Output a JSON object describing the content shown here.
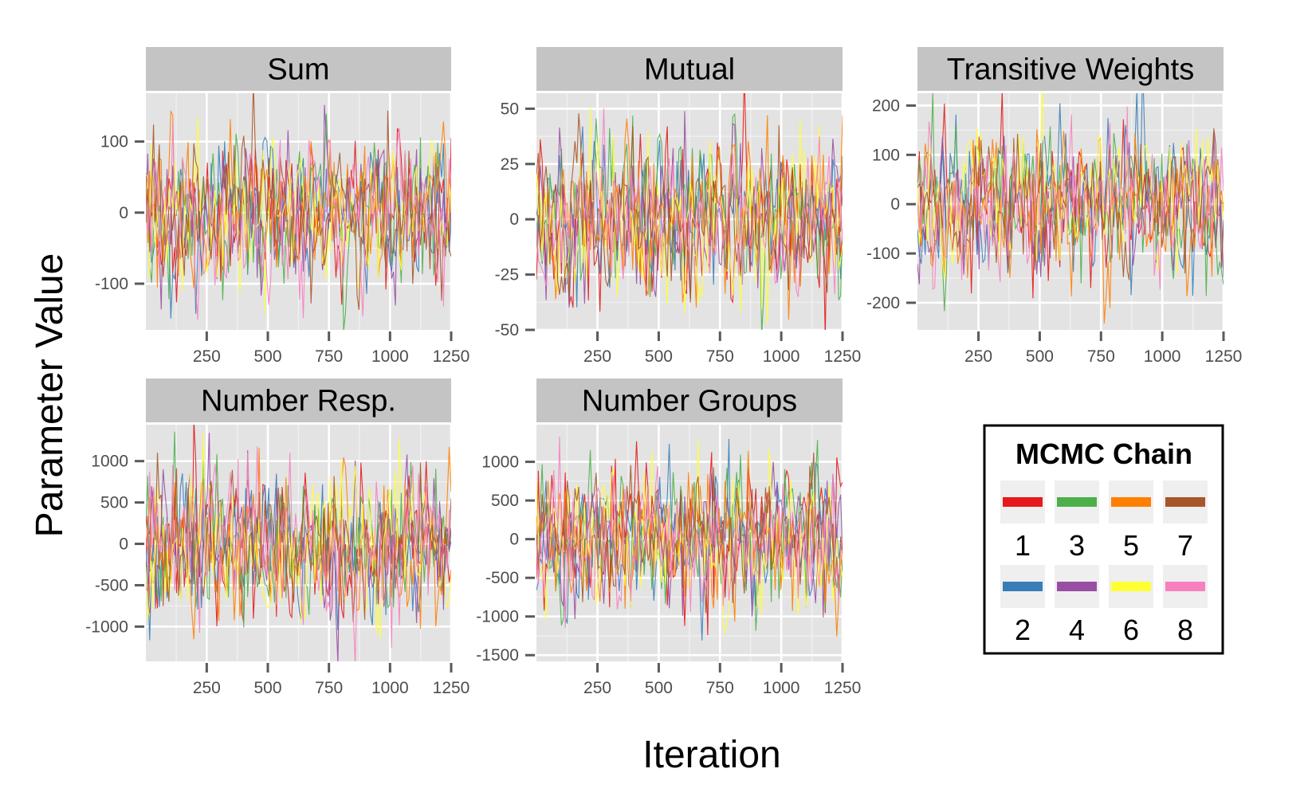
{
  "chart_data": {
    "type": "line",
    "xlabel": "Iteration",
    "ylabel": "Parameter Value",
    "x_range": [
      1,
      1250
    ],
    "x_ticks": [
      250,
      500,
      750,
      1000,
      1250
    ],
    "legend": {
      "title": "MCMC Chain",
      "position": "bottom-right",
      "entries": [
        {
          "label": "1",
          "color": "#E41A1C"
        },
        {
          "label": "2",
          "color": "#377EB8"
        },
        {
          "label": "3",
          "color": "#4DAF4A"
        },
        {
          "label": "4",
          "color": "#984EA3"
        },
        {
          "label": "5",
          "color": "#FF7F00"
        },
        {
          "label": "6",
          "color": "#FFFF33"
        },
        {
          "label": "7",
          "color": "#A65628"
        },
        {
          "label": "8",
          "color": "#F781BF"
        }
      ]
    },
    "panels": [
      {
        "title": "Sum",
        "ylim": [
          -165,
          168
        ],
        "y_ticks": [
          -100,
          0,
          100
        ],
        "y_tick_labels": [
          "-100",
          "0",
          "100"
        ],
        "series_mean": 0,
        "series_sd": 50
      },
      {
        "title": "Mutual",
        "ylim": [
          -50,
          57
        ],
        "y_ticks": [
          -50,
          -25,
          0,
          25,
          50
        ],
        "y_tick_labels": [
          "-50",
          "-25",
          "0",
          "25",
          "50"
        ],
        "series_mean": 0,
        "series_sd": 17
      },
      {
        "title": "Transitive Weights",
        "ylim": [
          -255,
          225
        ],
        "y_ticks": [
          -200,
          -100,
          0,
          100,
          200
        ],
        "y_tick_labels": [
          "-200",
          "-100",
          "0",
          "100",
          "200"
        ],
        "series_mean": 0,
        "series_sd": 68
      },
      {
        "title": "Number Resp.",
        "ylim": [
          -1420,
          1440
        ],
        "y_ticks": [
          -1000,
          -500,
          0,
          500,
          1000
        ],
        "y_tick_labels": [
          "-1000",
          "-500",
          "0",
          "500",
          "1000"
        ],
        "series_mean": 0,
        "series_sd": 430
      },
      {
        "title": "Number Groups",
        "ylim": [
          -1580,
          1480
        ],
        "y_ticks": [
          -1500,
          -1000,
          -500,
          0,
          500,
          1000
        ],
        "y_tick_labels": [
          "-1500",
          "-1000",
          "-500",
          "0",
          "500",
          "1000"
        ],
        "series_mean": 0,
        "series_sd": 430
      }
    ]
  }
}
